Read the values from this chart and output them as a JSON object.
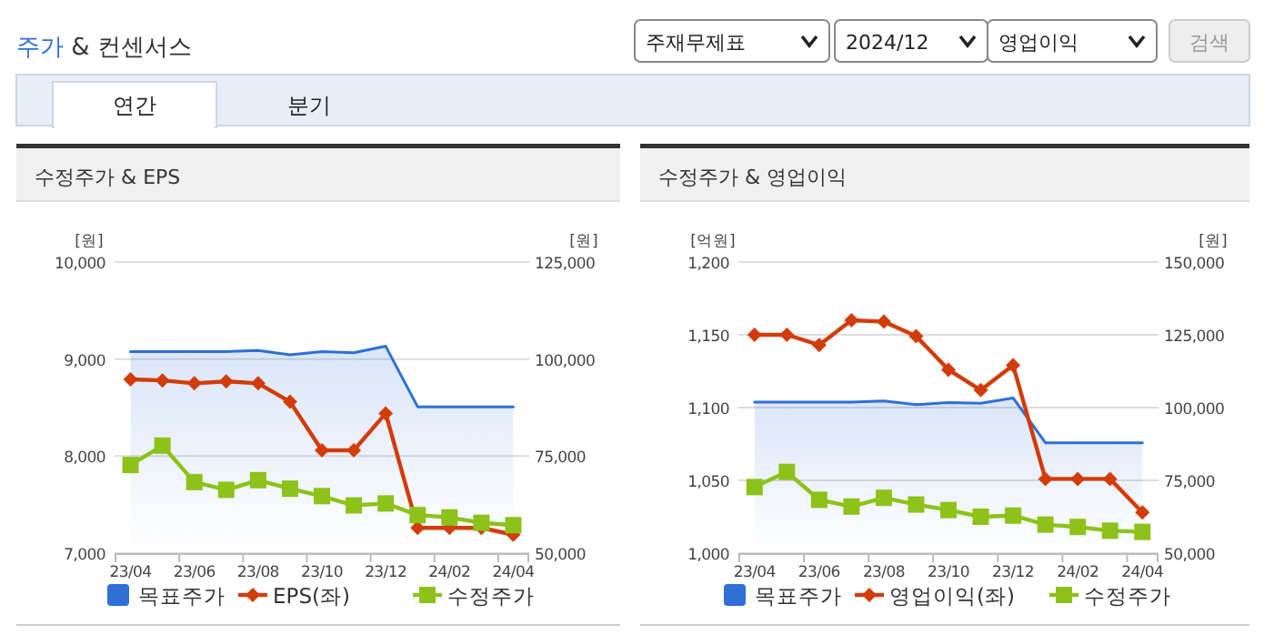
{
  "chart_data": [
    {
      "type": "other",
      "title": "주가 & 컨센서스",
      "annotations": [
        "주재무제표",
        "2024/12",
        "영업이익",
        "검색",
        "연간",
        "분기"
      ]
    },
    {
      "type": "line",
      "title": "수정주가 & EPS",
      "ylabel": "[원]",
      "y2label": "[원]",
      "categories": [
        "23/04",
        null,
        "23/06",
        null,
        "23/08",
        null,
        "23/10",
        null,
        "23/12",
        null,
        "24/02",
        null,
        "24/04"
      ],
      "ylim": [
        7000,
        10000
      ],
      "yticks": [
        {
          "value": 7000,
          "label": "7,000"
        },
        {
          "value": 8000,
          "label": "8,000"
        },
        {
          "value": 9000,
          "label": "9,000"
        },
        {
          "value": 10000,
          "label": "10,000"
        }
      ],
      "y2lim": [
        50000,
        125000
      ],
      "y2ticks": [
        {
          "value": 50000,
          "label": "50,000"
        },
        {
          "value": 75000,
          "label": "75,000"
        },
        {
          "value": 100000,
          "label": "100,000"
        },
        {
          "value": 125000,
          "label": "125,000"
        }
      ],
      "grid": "y",
      "legend": "bottom",
      "series": [
        {
          "name": "목표주가",
          "type": "area",
          "axis": "y2",
          "color": "#2f6fd6",
          "marker": "none",
          "values": [
            101900,
            101900,
            101900,
            101900,
            102200,
            101100,
            101900,
            101600,
            103300,
            87700,
            87700,
            87700,
            87700
          ]
        },
        {
          "name": "EPS(좌)",
          "type": "line",
          "color": "#d23c0a",
          "marker": "diamond",
          "values": [
            8790,
            8780,
            8750,
            8770,
            8750,
            8560,
            8060,
            8060,
            8440,
            7260,
            7260,
            7260,
            7190
          ]
        },
        {
          "name": "수정주가",
          "type": "line",
          "axis": "y2",
          "color": "#8cc21a",
          "marker": "square",
          "values": [
            72700,
            77700,
            68300,
            66300,
            68800,
            66600,
            64700,
            62300,
            62800,
            59800,
            59200,
            57800,
            57200
          ]
        }
      ]
    },
    {
      "type": "line",
      "title": "수정주가 & 영업이익",
      "ylabel": "[억원]",
      "y2label": "[원]",
      "categories": [
        "23/04",
        null,
        "23/06",
        null,
        "23/08",
        null,
        "23/10",
        null,
        "23/12",
        null,
        "24/02",
        null,
        "24/04"
      ],
      "ylim": [
        1000,
        1200
      ],
      "yticks": [
        {
          "value": 1000,
          "label": "1,000"
        },
        {
          "value": 1050,
          "label": "1,050"
        },
        {
          "value": 1100,
          "label": "1,100"
        },
        {
          "value": 1150,
          "label": "1,150"
        },
        {
          "value": 1200,
          "label": "1,200"
        }
      ],
      "y2lim": [
        50000,
        150000
      ],
      "y2ticks": [
        {
          "value": 50000,
          "label": "50,000"
        },
        {
          "value": 75000,
          "label": "75,000"
        },
        {
          "value": 100000,
          "label": "100,000"
        },
        {
          "value": 125000,
          "label": "125,000"
        },
        {
          "value": 150000,
          "label": "150,000"
        }
      ],
      "grid": "y",
      "legend": "bottom",
      "series": [
        {
          "name": "목표주가",
          "type": "area",
          "axis": "y2",
          "color": "#2f6fd6",
          "marker": "none",
          "values": [
            101900,
            101900,
            101900,
            101900,
            102300,
            101000,
            101700,
            101500,
            103300,
            87900,
            87900,
            87900,
            87900
          ]
        },
        {
          "name": "영업이익(좌)",
          "type": "line",
          "color": "#d23c0a",
          "marker": "diamond",
          "values": [
            1150,
            1150,
            1143,
            1160,
            1159,
            1149,
            1126,
            1112,
            1129,
            1051,
            1051,
            1051,
            1028
          ]
        },
        {
          "name": "수정주가",
          "type": "line",
          "axis": "y2",
          "color": "#8cc21a",
          "marker": "square",
          "values": [
            72700,
            77900,
            68300,
            66000,
            69000,
            66700,
            64800,
            62500,
            62900,
            59800,
            59000,
            57700,
            57300
          ]
        }
      ]
    }
  ]
}
